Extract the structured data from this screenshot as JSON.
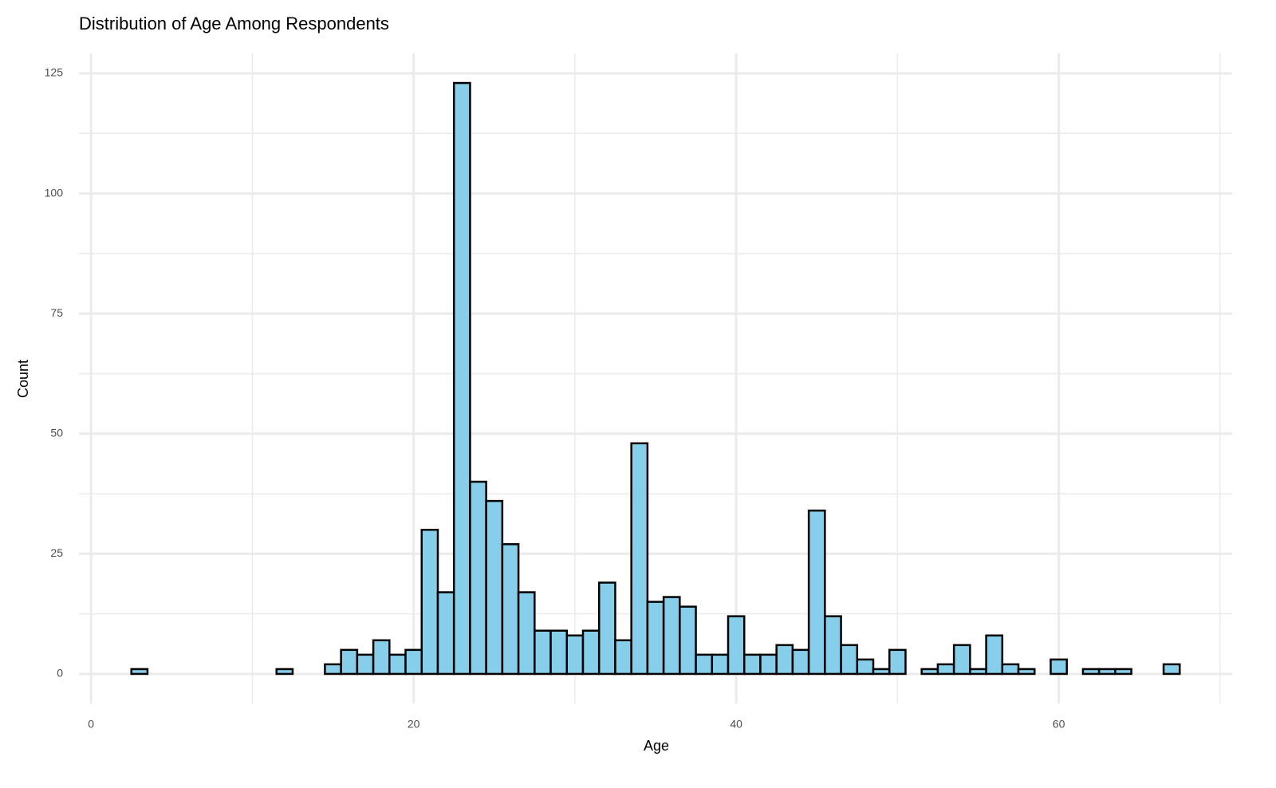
{
  "chart_data": {
    "type": "histogram",
    "title": "Distribution of Age Among Respondents",
    "x_label": "Age",
    "y_label": "Count",
    "bins": [
      2.5,
      3.5,
      4.5,
      5.5,
      6.5,
      7.5,
      8.5,
      9.5,
      10.5,
      11.5,
      12.5,
      13.5,
      14.5,
      15.5,
      16.5,
      17.5,
      18.5,
      19.5,
      20.5,
      21.5,
      22.5,
      23.5,
      24.5,
      25.5,
      26.5,
      27.5,
      28.5,
      29.5,
      30.5,
      31.5,
      32.5,
      33.5,
      34.5,
      35.5,
      36.5,
      37.5,
      38.5,
      39.5,
      40.5,
      41.5,
      42.5,
      43.5,
      44.5,
      45.5,
      46.5,
      47.5,
      48.5,
      49.5,
      50.5,
      51.5,
      52.5,
      53.5,
      54.5,
      55.5,
      56.5,
      57.5,
      58.5,
      59.5,
      60.5,
      61.5,
      62.5,
      63.5,
      64.5,
      65.5,
      66.5,
      67.5
    ],
    "values": [
      1,
      0,
      0,
      0,
      0,
      0,
      0,
      0,
      0,
      1,
      0,
      0,
      2,
      5,
      4,
      7,
      4,
      5,
      30,
      17,
      123,
      40,
      36,
      27,
      17,
      9,
      9,
      8,
      9,
      19,
      7,
      48,
      15,
      16,
      14,
      4,
      4,
      12,
      4,
      4,
      6,
      5,
      34,
      12,
      6,
      3,
      1,
      5,
      0,
      1,
      2,
      6,
      1,
      8,
      2,
      1,
      0,
      3,
      0,
      1,
      1,
      1,
      0,
      0,
      2
    ],
    "color": "#87ceeb",
    "edge_color": "#000000",
    "xlim": [
      -0.75,
      70.75
    ],
    "ylim": [
      -6.15,
      129.15
    ],
    "xticks": [
      0,
      20,
      40,
      60
    ],
    "x_minor_ticks": [
      10,
      30,
      50,
      70
    ],
    "yticks": [
      0,
      25,
      50,
      75,
      100,
      125
    ],
    "y_minor_ticks": [
      12.5,
      37.5,
      62.5,
      87.5,
      112.5
    ],
    "grid": true
  }
}
